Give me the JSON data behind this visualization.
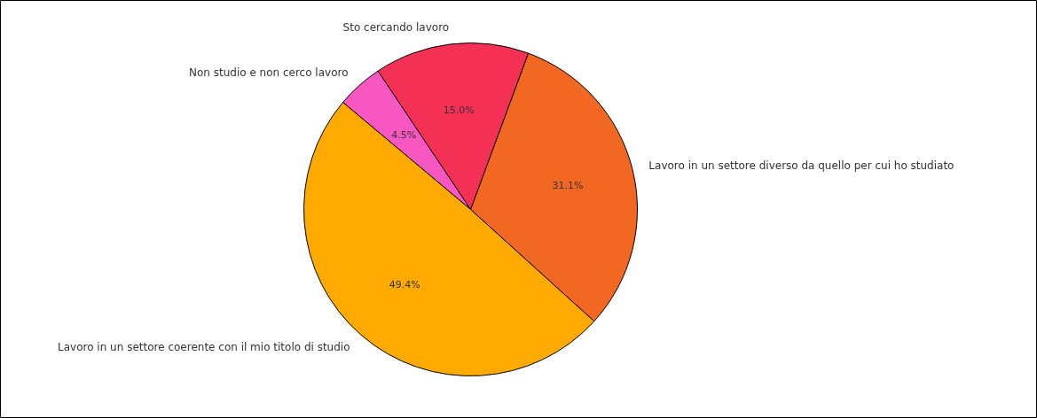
{
  "chart_data": {
    "type": "pie",
    "categories": [
      "Lavoro in un settore diverso da quello per cui ho studiato",
      "Sto cercando lavoro",
      "Non studio e non cerco lavoro",
      "Lavoro in un settore coerente con il mio titolo di studio"
    ],
    "values": [
      31.1,
      15.0,
      4.5,
      49.4
    ],
    "colors": [
      "#f26722",
      "#f43155",
      "#f857c1",
      "#ffaa00"
    ],
    "value_labels": [
      "31.1%",
      "15.0%",
      "4.5%",
      "49.4%"
    ]
  }
}
